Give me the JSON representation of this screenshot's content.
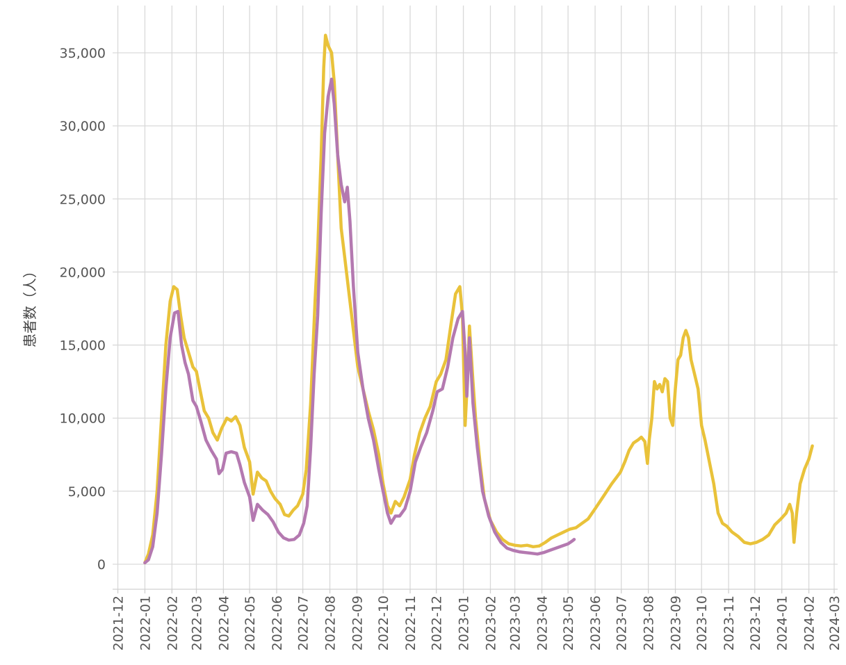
{
  "chart_data": {
    "type": "line",
    "title": "",
    "ylabel": "患者数（人）",
    "xlabel": "",
    "ylim": [
      -1800,
      38000
    ],
    "xlim": [
      "2021-11-25",
      "2024-03-05"
    ],
    "grid": true,
    "legend": "none",
    "x_ticks": [
      "2021-12",
      "2022-01",
      "2022-02",
      "2022-03",
      "2022-04",
      "2022-05",
      "2022-06",
      "2022-07",
      "2022-08",
      "2022-09",
      "2022-10",
      "2022-11",
      "2022-12",
      "2023-01",
      "2023-02",
      "2023-03",
      "2023-04",
      "2023-05",
      "2023-06",
      "2023-07",
      "2023-08",
      "2023-09",
      "2023-10",
      "2023-11",
      "2023-12",
      "2024-01",
      "2024-02",
      "2024-03"
    ],
    "y_ticks": [
      0,
      5000,
      10000,
      15000,
      20000,
      25000,
      30000,
      35000
    ],
    "y_tick_labels": [
      "0",
      "5,000",
      "10,000",
      "15,000",
      "20,000",
      "25,000",
      "30,000",
      "35,000"
    ],
    "series": [
      {
        "color": "#e9c23a",
        "points": [
          [
            "2022-01-01",
            100
          ],
          [
            "2022-01-05",
            700
          ],
          [
            "2022-01-10",
            2000
          ],
          [
            "2022-01-15",
            5000
          ],
          [
            "2022-01-20",
            10000
          ],
          [
            "2022-01-25",
            15000
          ],
          [
            "2022-01-30",
            18000
          ],
          [
            "2022-02-03",
            19000
          ],
          [
            "2022-02-07",
            18800
          ],
          [
            "2022-02-11",
            17000
          ],
          [
            "2022-02-15",
            15500
          ],
          [
            "2022-02-20",
            14500
          ],
          [
            "2022-02-25",
            13500
          ],
          [
            "2022-03-01",
            13200
          ],
          [
            "2022-03-05",
            12000
          ],
          [
            "2022-03-10",
            10500
          ],
          [
            "2022-03-15",
            10000
          ],
          [
            "2022-03-20",
            9000
          ],
          [
            "2022-03-25",
            8500
          ],
          [
            "2022-03-30",
            9300
          ],
          [
            "2022-04-05",
            10000
          ],
          [
            "2022-04-10",
            9800
          ],
          [
            "2022-04-15",
            10100
          ],
          [
            "2022-04-20",
            9500
          ],
          [
            "2022-04-25",
            8000
          ],
          [
            "2022-05-01",
            7000
          ],
          [
            "2022-05-05",
            4800
          ],
          [
            "2022-05-10",
            6300
          ],
          [
            "2022-05-15",
            5900
          ],
          [
            "2022-05-20",
            5700
          ],
          [
            "2022-05-25",
            5000
          ],
          [
            "2022-05-30",
            4500
          ],
          [
            "2022-06-05",
            4100
          ],
          [
            "2022-06-10",
            3400
          ],
          [
            "2022-06-15",
            3300
          ],
          [
            "2022-06-20",
            3700
          ],
          [
            "2022-06-25",
            4000
          ],
          [
            "2022-07-01",
            4800
          ],
          [
            "2022-07-05",
            6500
          ],
          [
            "2022-07-10",
            11000
          ],
          [
            "2022-07-15",
            18000
          ],
          [
            "2022-07-18",
            21500
          ],
          [
            "2022-07-22",
            28000
          ],
          [
            "2022-07-25",
            34000
          ],
          [
            "2022-07-27",
            36200
          ],
          [
            "2022-07-30",
            35500
          ],
          [
            "2022-08-03",
            35000
          ],
          [
            "2022-08-06",
            33000
          ],
          [
            "2022-08-10",
            28000
          ],
          [
            "2022-08-14",
            23000
          ],
          [
            "2022-08-18",
            21000
          ],
          [
            "2022-08-22",
            19000
          ],
          [
            "2022-08-28",
            16000
          ],
          [
            "2022-09-02",
            13500
          ],
          [
            "2022-09-08",
            12000
          ],
          [
            "2022-09-14",
            10500
          ],
          [
            "2022-09-20",
            9200
          ],
          [
            "2022-09-26",
            7500
          ],
          [
            "2022-10-01",
            5500
          ],
          [
            "2022-10-06",
            4000
          ],
          [
            "2022-10-10",
            3500
          ],
          [
            "2022-10-15",
            4300
          ],
          [
            "2022-10-20",
            4000
          ],
          [
            "2022-10-25",
            4600
          ],
          [
            "2022-11-01",
            5800
          ],
          [
            "2022-11-06",
            7500
          ],
          [
            "2022-11-12",
            9000
          ],
          [
            "2022-11-18",
            10000
          ],
          [
            "2022-11-24",
            10800
          ],
          [
            "2022-12-01",
            12500
          ],
          [
            "2022-12-06",
            13000
          ],
          [
            "2022-12-12",
            14000
          ],
          [
            "2022-12-18",
            16500
          ],
          [
            "2022-12-23",
            18500
          ],
          [
            "2022-12-28",
            19000
          ],
          [
            "2022-12-31",
            17000
          ],
          [
            "2023-01-03",
            9500
          ],
          [
            "2023-01-06",
            13000
          ],
          [
            "2023-01-08",
            16300
          ],
          [
            "2023-01-12",
            12500
          ],
          [
            "2023-01-15",
            10000
          ],
          [
            "2023-01-20",
            7000
          ],
          [
            "2023-01-25",
            4500
          ],
          [
            "2023-02-01",
            3000
          ],
          [
            "2023-02-08",
            2200
          ],
          [
            "2023-02-15",
            1700
          ],
          [
            "2023-02-22",
            1400
          ],
          [
            "2023-03-01",
            1300
          ],
          [
            "2023-03-08",
            1250
          ],
          [
            "2023-03-15",
            1300
          ],
          [
            "2023-03-22",
            1200
          ],
          [
            "2023-03-29",
            1250
          ],
          [
            "2023-04-05",
            1500
          ],
          [
            "2023-04-12",
            1800
          ],
          [
            "2023-04-19",
            2000
          ],
          [
            "2023-04-26",
            2200
          ],
          [
            "2023-05-03",
            2400
          ],
          [
            "2023-05-10",
            2500
          ],
          [
            "2023-05-17",
            2800
          ],
          [
            "2023-05-24",
            3100
          ],
          [
            "2023-06-01",
            3800
          ],
          [
            "2023-06-10",
            4600
          ],
          [
            "2023-06-20",
            5500
          ],
          [
            "2023-06-30",
            6300
          ],
          [
            "2023-07-05",
            7000
          ],
          [
            "2023-07-10",
            7800
          ],
          [
            "2023-07-15",
            8300
          ],
          [
            "2023-07-20",
            8500
          ],
          [
            "2023-07-24",
            8700
          ],
          [
            "2023-07-28",
            8400
          ],
          [
            "2023-07-31",
            6900
          ],
          [
            "2023-08-02",
            8500
          ],
          [
            "2023-08-05",
            10000
          ],
          [
            "2023-08-08",
            12500
          ],
          [
            "2023-08-11",
            12000
          ],
          [
            "2023-08-14",
            12300
          ],
          [
            "2023-08-17",
            11800
          ],
          [
            "2023-08-20",
            12700
          ],
          [
            "2023-08-23",
            12500
          ],
          [
            "2023-08-26",
            10000
          ],
          [
            "2023-08-29",
            9500
          ],
          [
            "2023-09-01",
            12000
          ],
          [
            "2023-09-04",
            14000
          ],
          [
            "2023-09-07",
            14300
          ],
          [
            "2023-09-10",
            15500
          ],
          [
            "2023-09-13",
            16000
          ],
          [
            "2023-09-16",
            15500
          ],
          [
            "2023-09-19",
            14000
          ],
          [
            "2023-09-23",
            13000
          ],
          [
            "2023-09-27",
            12000
          ],
          [
            "2023-10-01",
            9500
          ],
          [
            "2023-10-05",
            8500
          ],
          [
            "2023-10-10",
            7000
          ],
          [
            "2023-10-15",
            5500
          ],
          [
            "2023-10-20",
            3500
          ],
          [
            "2023-10-25",
            2800
          ],
          [
            "2023-10-30",
            2600
          ],
          [
            "2023-11-05",
            2200
          ],
          [
            "2023-11-12",
            1900
          ],
          [
            "2023-11-19",
            1500
          ],
          [
            "2023-11-26",
            1400
          ],
          [
            "2023-12-03",
            1500
          ],
          [
            "2023-12-10",
            1700
          ],
          [
            "2023-12-17",
            2000
          ],
          [
            "2023-12-24",
            2700
          ],
          [
            "2023-12-31",
            3100
          ],
          [
            "2024-01-06",
            3500
          ],
          [
            "2024-01-10",
            4100
          ],
          [
            "2024-01-13",
            3500
          ],
          [
            "2024-01-15",
            1500
          ],
          [
            "2024-01-18",
            3500
          ],
          [
            "2024-01-22",
            5500
          ],
          [
            "2024-01-27",
            6500
          ],
          [
            "2024-02-01",
            7200
          ],
          [
            "2024-02-05",
            8100
          ]
        ]
      },
      {
        "color": "#b479b0",
        "points": [
          [
            "2022-01-01",
            100
          ],
          [
            "2022-01-05",
            300
          ],
          [
            "2022-01-10",
            1200
          ],
          [
            "2022-01-15",
            3500
          ],
          [
            "2022-01-20",
            7500
          ],
          [
            "2022-01-25",
            12000
          ],
          [
            "2022-01-30",
            15500
          ],
          [
            "2022-02-04",
            17200
          ],
          [
            "2022-02-08",
            17300
          ],
          [
            "2022-02-12",
            15000
          ],
          [
            "2022-02-16",
            13800
          ],
          [
            "2022-02-20",
            13000
          ],
          [
            "2022-02-25",
            11200
          ],
          [
            "2022-03-01",
            10800
          ],
          [
            "2022-03-06",
            9800
          ],
          [
            "2022-03-12",
            8500
          ],
          [
            "2022-03-18",
            7800
          ],
          [
            "2022-03-24",
            7200
          ],
          [
            "2022-03-27",
            6200
          ],
          [
            "2022-03-31",
            6500
          ],
          [
            "2022-04-04",
            7600
          ],
          [
            "2022-04-10",
            7700
          ],
          [
            "2022-04-16",
            7600
          ],
          [
            "2022-04-20",
            6800
          ],
          [
            "2022-04-25",
            5600
          ],
          [
            "2022-05-01",
            4600
          ],
          [
            "2022-05-05",
            3000
          ],
          [
            "2022-05-10",
            4100
          ],
          [
            "2022-05-16",
            3700
          ],
          [
            "2022-05-22",
            3400
          ],
          [
            "2022-05-28",
            2900
          ],
          [
            "2022-06-03",
            2200
          ],
          [
            "2022-06-09",
            1800
          ],
          [
            "2022-06-15",
            1650
          ],
          [
            "2022-06-21",
            1700
          ],
          [
            "2022-06-27",
            2000
          ],
          [
            "2022-07-02",
            2800
          ],
          [
            "2022-07-06",
            4000
          ],
          [
            "2022-07-10",
            8000
          ],
          [
            "2022-07-14",
            13000
          ],
          [
            "2022-07-18",
            17000
          ],
          [
            "2022-07-22",
            24000
          ],
          [
            "2022-07-26",
            29500
          ],
          [
            "2022-07-30",
            32000
          ],
          [
            "2022-08-03",
            33200
          ],
          [
            "2022-08-06",
            31500
          ],
          [
            "2022-08-10",
            28000
          ],
          [
            "2022-08-14",
            26000
          ],
          [
            "2022-08-18",
            24800
          ],
          [
            "2022-08-21",
            25800
          ],
          [
            "2022-08-24",
            23500
          ],
          [
            "2022-08-28",
            19000
          ],
          [
            "2022-09-02",
            14500
          ],
          [
            "2022-09-08",
            12000
          ],
          [
            "2022-09-14",
            10000
          ],
          [
            "2022-09-20",
            8500
          ],
          [
            "2022-09-26",
            6500
          ],
          [
            "2022-10-01",
            5000
          ],
          [
            "2022-10-06",
            3500
          ],
          [
            "2022-10-10",
            2800
          ],
          [
            "2022-10-15",
            3300
          ],
          [
            "2022-10-20",
            3300
          ],
          [
            "2022-10-26",
            3800
          ],
          [
            "2022-11-01",
            5000
          ],
          [
            "2022-11-07",
            7000
          ],
          [
            "2022-11-13",
            8000
          ],
          [
            "2022-11-20",
            9000
          ],
          [
            "2022-11-27",
            10500
          ],
          [
            "2022-12-02",
            11800
          ],
          [
            "2022-12-08",
            12000
          ],
          [
            "2022-12-14",
            13500
          ],
          [
            "2022-12-20",
            15500
          ],
          [
            "2022-12-26",
            16800
          ],
          [
            "2022-12-31",
            17300
          ],
          [
            "2023-01-03",
            14500
          ],
          [
            "2023-01-05",
            11500
          ],
          [
            "2023-01-08",
            15500
          ],
          [
            "2023-01-12",
            11000
          ],
          [
            "2023-01-17",
            8000
          ],
          [
            "2023-01-23",
            5000
          ],
          [
            "2023-01-30",
            3300
          ],
          [
            "2023-02-06",
            2200
          ],
          [
            "2023-02-13",
            1500
          ],
          [
            "2023-02-20",
            1100
          ],
          [
            "2023-02-27",
            950
          ],
          [
            "2023-03-06",
            850
          ],
          [
            "2023-03-13",
            800
          ],
          [
            "2023-03-20",
            750
          ],
          [
            "2023-03-27",
            700
          ],
          [
            "2023-04-03",
            800
          ],
          [
            "2023-04-10",
            950
          ],
          [
            "2023-04-17",
            1100
          ],
          [
            "2023-04-24",
            1250
          ],
          [
            "2023-05-01",
            1400
          ],
          [
            "2023-05-06",
            1600
          ],
          [
            "2023-05-08",
            1700
          ]
        ]
      }
    ]
  }
}
